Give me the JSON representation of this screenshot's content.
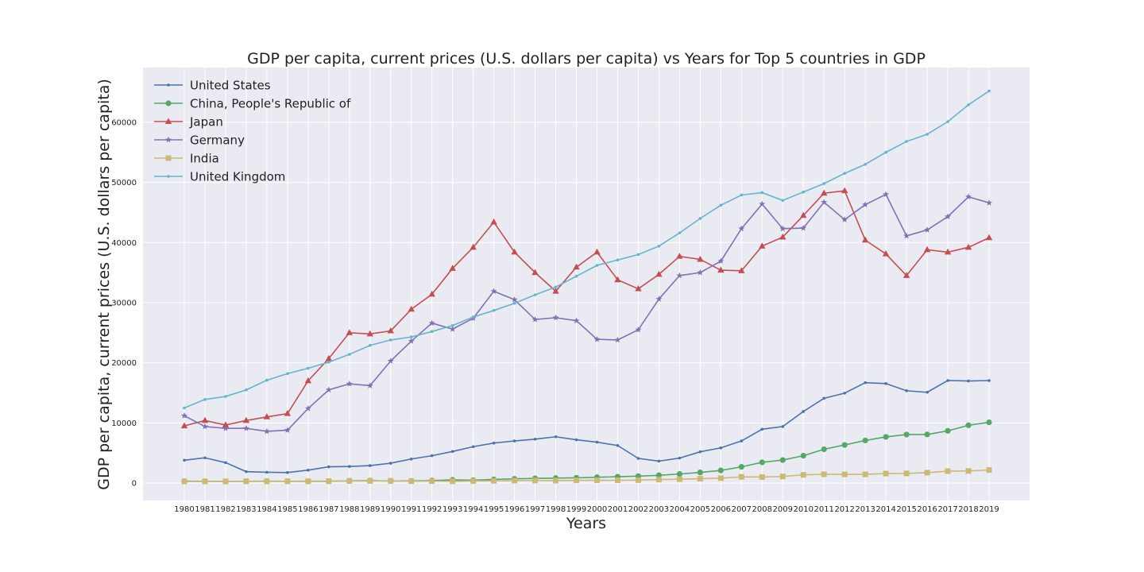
{
  "chart_data": {
    "type": "line",
    "title": "GDP per capita, current prices (U.S. dollars per capita) vs Years for Top 5 countries in GDP",
    "xlabel": "Years",
    "ylabel": "GDP per capita, current prices (U.S. dollars per capita)",
    "x": [
      "1980",
      "1981",
      "1982",
      "1983",
      "1984",
      "1985",
      "1986",
      "1987",
      "1988",
      "1989",
      "1990",
      "1991",
      "1992",
      "1993",
      "1994",
      "1995",
      "1996",
      "1997",
      "1998",
      "1999",
      "2000",
      "2001",
      "2002",
      "2003",
      "2004",
      "2005",
      "2006",
      "2007",
      "2008",
      "2009",
      "2010",
      "2011",
      "2012",
      "2013",
      "2014",
      "2015",
      "2016",
      "2017",
      "2018",
      "2019"
    ],
    "ylim": [
      -2900,
      69100
    ],
    "yticks": [
      0,
      10000,
      20000,
      30000,
      40000,
      50000,
      60000
    ],
    "grid": true,
    "legend_position": "top-left",
    "background_color": "#EAEAF2",
    "series": [
      {
        "name": "United States",
        "color": "#4C72B0",
        "marker": "point",
        "values": [
          3800,
          4200,
          3400,
          1900,
          1800,
          1750,
          2150,
          2700,
          2750,
          2900,
          3300,
          4000,
          4550,
          5250,
          6050,
          6650,
          7000,
          7300,
          7700,
          7200,
          6800,
          6250,
          4100,
          3650,
          4150,
          5200,
          5850,
          7000,
          8950,
          9400,
          11900,
          14100,
          14950,
          16700,
          16550,
          15350,
          15100,
          17050,
          16980,
          17050
        ]
      },
      {
        "name": "China, People's Republic of",
        "color": "#55A868",
        "marker": "circle",
        "values": [
          310,
          290,
          280,
          300,
          310,
          300,
          280,
          300,
          370,
          410,
          350,
          360,
          420,
          530,
          480,
          610,
          710,
          780,
          830,
          870,
          960,
          1050,
          1150,
          1290,
          1510,
          1770,
          2100,
          2700,
          3450,
          3830,
          4550,
          5620,
          6340,
          7080,
          7680,
          8070,
          8080,
          8680,
          9610,
          10100
        ]
      },
      {
        "name": "Japan",
        "color": "#C44E52",
        "marker": "triangle",
        "values": [
          9500,
          10400,
          9650,
          10400,
          11000,
          11550,
          17000,
          20700,
          25000,
          24800,
          25300,
          28900,
          31400,
          35700,
          39200,
          43400,
          38400,
          35000,
          31900,
          35900,
          38400,
          33800,
          32300,
          34700,
          37700,
          37200,
          35400,
          35300,
          39400,
          40900,
          44500,
          48200,
          48600,
          40400,
          38100,
          34500,
          38800,
          38400,
          39200,
          40800
        ]
      },
      {
        "name": "Germany",
        "color": "#8172B2",
        "marker": "star",
        "values": [
          11200,
          9400,
          9100,
          9100,
          8600,
          8800,
          12400,
          15500,
          16500,
          16200,
          20300,
          23600,
          26600,
          25600,
          27400,
          31900,
          30500,
          27200,
          27500,
          27000,
          23900,
          23800,
          25500,
          30600,
          34500,
          35000,
          36900,
          42300,
          46400,
          42300,
          42400,
          46700,
          43800,
          46300,
          48000,
          41100,
          42100,
          44300,
          47600,
          46600
        ]
      },
      {
        "name": "India",
        "color": "#CCB974",
        "marker": "square",
        "values": [
          270,
          280,
          290,
          300,
          280,
          300,
          310,
          330,
          350,
          350,
          380,
          310,
          320,
          300,
          350,
          380,
          410,
          420,
          410,
          450,
          460,
          470,
          490,
          570,
          640,
          730,
          810,
          1030,
          1000,
          1100,
          1360,
          1460,
          1450,
          1450,
          1580,
          1610,
          1730,
          1980,
          2010,
          2170
        ]
      },
      {
        "name": "United Kingdom",
        "color": "#64B5CD",
        "marker": "point",
        "values": [
          12500,
          13900,
          14400,
          15500,
          17100,
          18200,
          19100,
          20100,
          21400,
          22900,
          23800,
          24300,
          25200,
          26200,
          27600,
          28700,
          29900,
          31300,
          32600,
          34400,
          36200,
          37100,
          38000,
          39400,
          41600,
          44000,
          46200,
          47900,
          48300,
          47000,
          48400,
          49800,
          51500,
          53000,
          55000,
          56800,
          58000,
          60100,
          62900,
          65200
        ]
      }
    ]
  }
}
